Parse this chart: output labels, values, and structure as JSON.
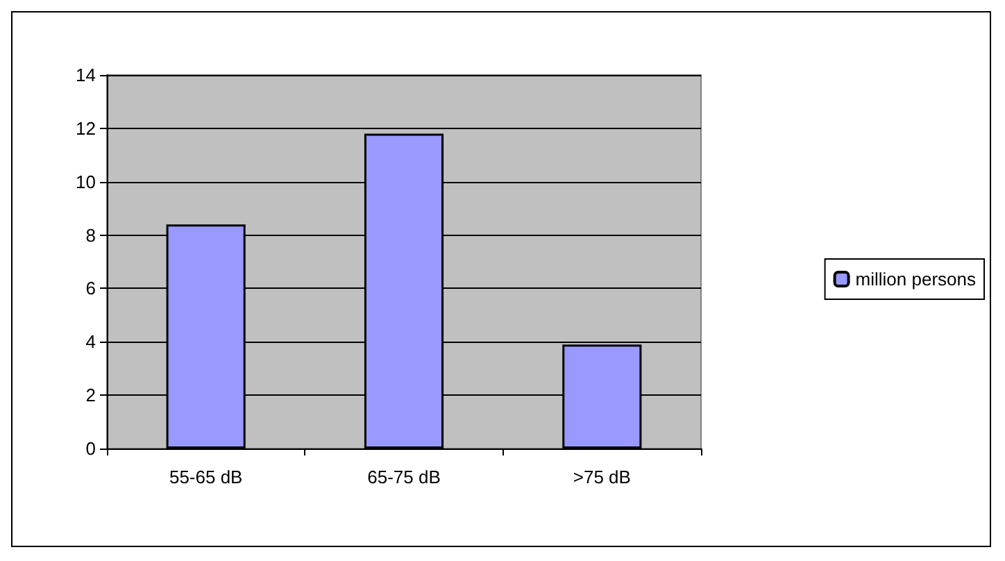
{
  "chart_data": {
    "type": "bar",
    "categories": [
      "55-65 dB",
      "65-75 dB",
      ">75 dB"
    ],
    "series": [
      {
        "name": "million persons",
        "color": "#9999ff",
        "values": [
          8.4,
          11.8,
          3.9
        ]
      }
    ],
    "ylim": [
      0,
      14
    ],
    "yticks": [
      0,
      2,
      4,
      6,
      8,
      10,
      12,
      14
    ],
    "grid": "y",
    "legend": "right"
  }
}
